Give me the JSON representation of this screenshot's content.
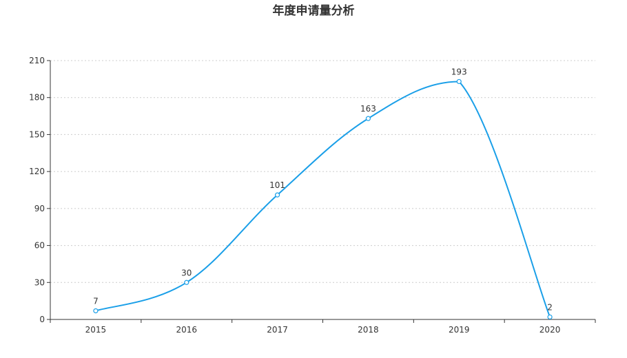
{
  "chart_data": {
    "type": "line",
    "title": "年度申请量分析",
    "xlabel": "",
    "ylabel": "",
    "categories": [
      "2015",
      "2016",
      "2017",
      "2018",
      "2019",
      "2020"
    ],
    "series": [
      {
        "name": "申请量",
        "values": [
          7,
          30,
          101,
          163,
          193,
          2
        ]
      }
    ],
    "ylim": [
      0,
      210
    ],
    "yticks": [
      0,
      30,
      60,
      90,
      120,
      150,
      180,
      210
    ],
    "grid": true,
    "smooth": true
  },
  "colors": {
    "line": "#1a9fe8",
    "grid": "#cccccc",
    "axis": "#333333",
    "text": "#333333"
  }
}
